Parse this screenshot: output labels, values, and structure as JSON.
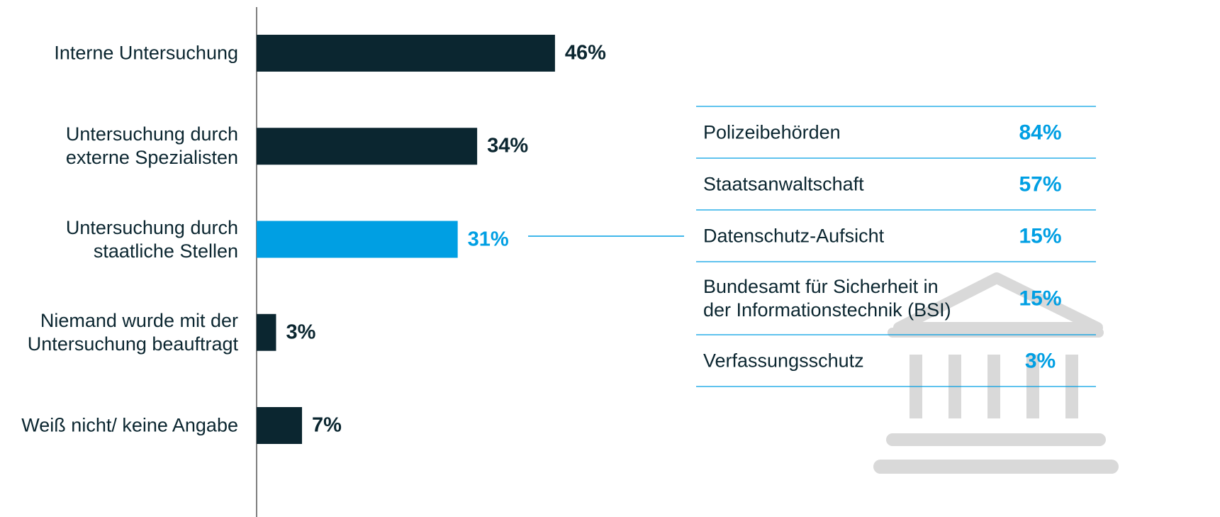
{
  "chart_data": {
    "type": "bar",
    "orientation": "horizontal",
    "categories": [
      "Interne Untersuchung",
      "Untersuchung durch\nexterne Spezialisten",
      "Untersuchung durch\nstaatliche Stellen",
      "Niemand wurde mit der\nUntersuchung beauftragt",
      "Weiß nicht/ keine Angabe"
    ],
    "values": [
      46,
      34,
      31,
      3,
      7
    ],
    "value_labels": [
      "46%",
      "34%",
      "31%",
      "3%",
      "7%"
    ],
    "colors": [
      "#0b2630",
      "#0b2630",
      "#009fe3",
      "#0b2630",
      "#0b2630"
    ]
  },
  "table": {
    "rows": [
      [
        "Polizeibehörden",
        "84%"
      ],
      [
        "Staatsanwaltschaft",
        "57%"
      ],
      [
        "Datenschutz-Aufsicht",
        "15%"
      ],
      [
        "Bundesamt für Sicherheit in\nder Informationstechnik (BSI)",
        "15%"
      ],
      [
        "Verfassungsschutz",
        "3%"
      ]
    ]
  }
}
